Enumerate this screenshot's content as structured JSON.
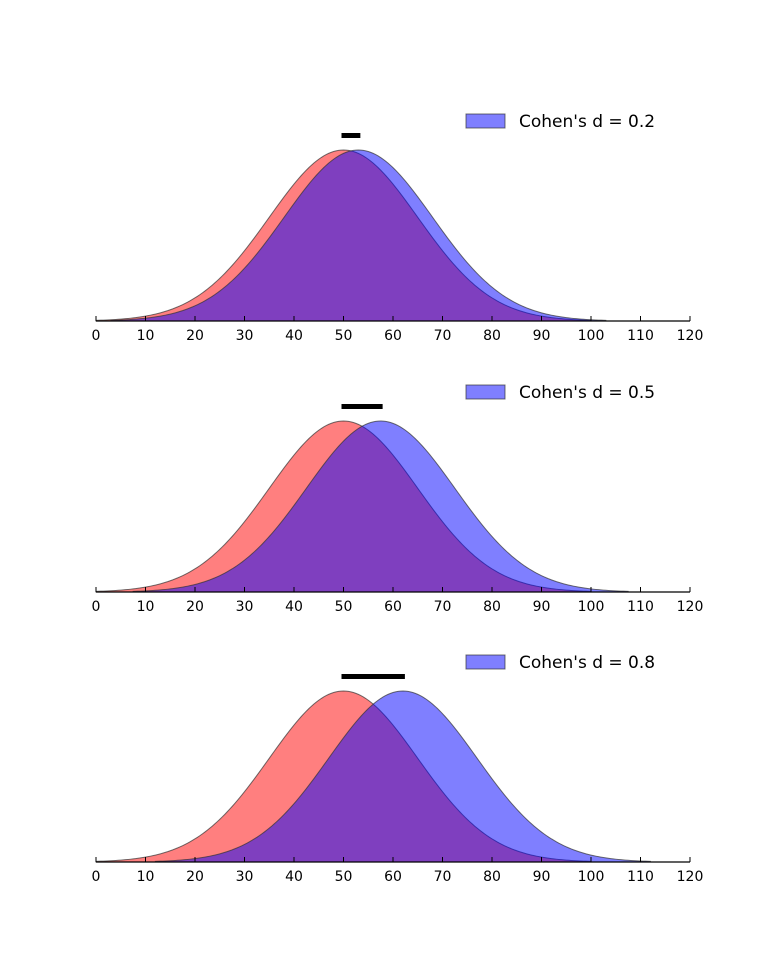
{
  "chart_data": [
    {
      "type": "area",
      "xlim": [
        0,
        120
      ],
      "x_ticks": [
        "0",
        "10",
        "20",
        "30",
        "40",
        "50",
        "60",
        "70",
        "80",
        "90",
        "100",
        "110",
        "120"
      ],
      "y_axis_visible": false,
      "grid": false,
      "legend_position": "top-right",
      "legend": "Cohen's d = 0.2",
      "series": [
        {
          "distribution": "normal",
          "mean": 50,
          "sd": 15,
          "x_range": [
            0,
            100
          ],
          "color": "#ff0000",
          "alpha": 0.5
        },
        {
          "distribution": "normal",
          "mean": 53,
          "sd": 15,
          "x_range": [
            3,
            103
          ],
          "color": "#0000ff",
          "alpha": 0.5
        }
      ],
      "mean_difference_bar": [
        50,
        53
      ]
    },
    {
      "type": "area",
      "xlim": [
        0,
        120
      ],
      "x_ticks": [
        "0",
        "10",
        "20",
        "30",
        "40",
        "50",
        "60",
        "70",
        "80",
        "90",
        "100",
        "110",
        "120"
      ],
      "y_axis_visible": false,
      "grid": false,
      "legend_position": "top-right",
      "legend": "Cohen's d = 0.5",
      "series": [
        {
          "distribution": "normal",
          "mean": 50,
          "sd": 15,
          "x_range": [
            0,
            100
          ],
          "color": "#ff0000",
          "alpha": 0.5
        },
        {
          "distribution": "normal",
          "mean": 57.5,
          "sd": 15,
          "x_range": [
            7.5,
            107.5
          ],
          "color": "#0000ff",
          "alpha": 0.5
        }
      ],
      "mean_difference_bar": [
        50,
        57.5
      ]
    },
    {
      "type": "area",
      "xlim": [
        0,
        120
      ],
      "x_ticks": [
        "0",
        "10",
        "20",
        "30",
        "40",
        "50",
        "60",
        "70",
        "80",
        "90",
        "100",
        "110",
        "120"
      ],
      "y_axis_visible": false,
      "grid": false,
      "legend_position": "top-right",
      "legend": "Cohen's d = 0.8",
      "series": [
        {
          "distribution": "normal",
          "mean": 50,
          "sd": 15,
          "x_range": [
            0,
            100
          ],
          "color": "#ff0000",
          "alpha": 0.5
        },
        {
          "distribution": "normal",
          "mean": 62,
          "sd": 15,
          "x_range": [
            12,
            112
          ],
          "color": "#0000ff",
          "alpha": 0.5
        }
      ],
      "mean_difference_bar": [
        50,
        62
      ]
    }
  ]
}
